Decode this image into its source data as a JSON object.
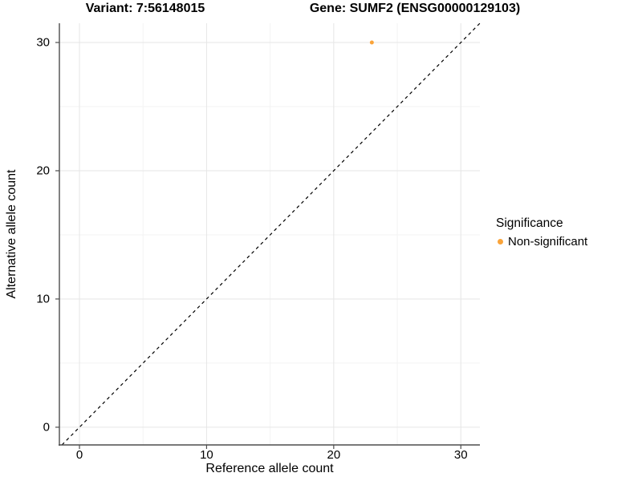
{
  "chart_data": {
    "type": "scatter",
    "title_left": "Variant: 7:56148015",
    "title_right": "Gene: SUMF2 (ENSG00000129103)",
    "xlabel": "Reference allele count",
    "ylabel": "Alternative allele count",
    "xlim": [
      -1.58,
      31.5
    ],
    "ylim": [
      -1.38,
      31.5
    ],
    "x_ticks": [
      0,
      10,
      20,
      30
    ],
    "y_ticks": [
      0,
      10,
      20,
      30
    ],
    "x_minor_ticks": [
      5,
      15,
      25
    ],
    "y_minor_ticks": [
      5,
      15,
      25
    ],
    "grid": true,
    "series": [
      {
        "name": "Non-significant",
        "color": "#FAA43A",
        "point_radius": 2.5,
        "points": [
          {
            "x": 23,
            "y": 30
          }
        ]
      }
    ],
    "reference_line": {
      "slope": 1,
      "intercept": 0,
      "style": "dashed",
      "color": "#000000"
    },
    "legend": {
      "title": "Significance",
      "position": "right",
      "items": [
        {
          "label": "Non-significant",
          "color": "#FAA43A"
        }
      ]
    }
  },
  "colors": {
    "background": "#FFFFFF",
    "grid_major": "#E6E6E6",
    "grid_minor": "#F3F3F3",
    "axis_line": "#4D4D4D",
    "tick_mark": "#4D4D4D",
    "text": "#000000"
  }
}
